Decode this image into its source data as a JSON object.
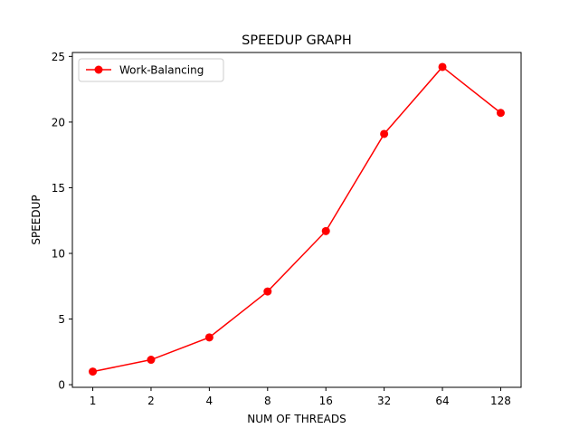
{
  "chart_data": {
    "type": "line",
    "title": "SPEEDUP GRAPH",
    "xlabel": "NUM OF THREADS",
    "ylabel": "SPEEDUP",
    "categories": [
      "1",
      "2",
      "4",
      "8",
      "16",
      "32",
      "64",
      "128"
    ],
    "x_scale": "categorical",
    "ylim": [
      -0.2,
      25.3
    ],
    "yticks": [
      0,
      5,
      10,
      15,
      20,
      25
    ],
    "grid": false,
    "legend": "upper-left",
    "series": [
      {
        "name": "Work-Balancing",
        "color": "#ff0000",
        "marker": "circle",
        "values": [
          1.0,
          1.9,
          3.6,
          7.1,
          11.7,
          19.1,
          24.2,
          20.7
        ]
      }
    ]
  }
}
